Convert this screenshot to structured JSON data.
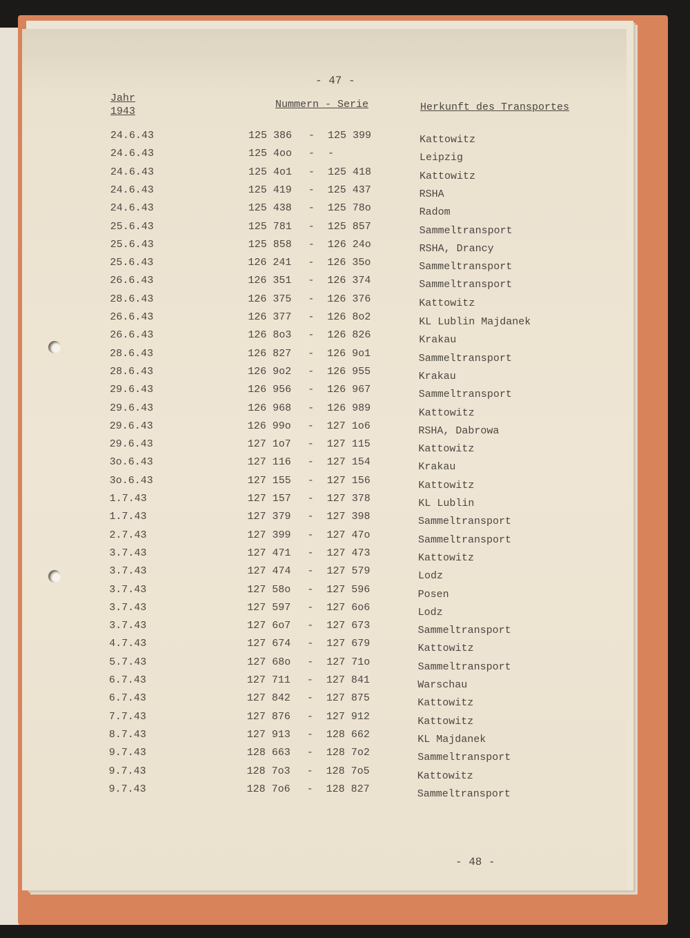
{
  "page_number_top": "- 47 -",
  "page_number_bottom": "- 48 -",
  "headers": {
    "year_label": "Jahr",
    "year": "1943",
    "numbers": "Nummern - Serie",
    "origin": "Herkunft des Transportes"
  },
  "rows": [
    {
      "date": "24.6.43",
      "from": "125 386",
      "dash": "-",
      "to": "125 399",
      "origin": "Kattowitz"
    },
    {
      "date": "24.6.43",
      "from": "125 4oo",
      "dash": "-",
      "to": "-",
      "origin": "Leipzig"
    },
    {
      "date": "24.6.43",
      "from": "125 4o1",
      "dash": "-",
      "to": "125 418",
      "origin": "Kattowitz"
    },
    {
      "date": "24.6.43",
      "from": "125 419",
      "dash": "-",
      "to": "125 437",
      "origin": "RSHA"
    },
    {
      "date": "24.6.43",
      "from": "125 438",
      "dash": "-",
      "to": "125 78o",
      "origin": "Radom"
    },
    {
      "date": "25.6.43",
      "from": "125 781",
      "dash": "-",
      "to": "125 857",
      "origin": "Sammeltransport"
    },
    {
      "date": "25.6.43",
      "from": "125 858",
      "dash": "-",
      "to": "126 24o",
      "origin": "RSHA, Drancy"
    },
    {
      "date": "25.6.43",
      "from": "126 241",
      "dash": "-",
      "to": "126 35o",
      "origin": "Sammeltransport"
    },
    {
      "date": "26.6.43",
      "from": "126 351",
      "dash": "-",
      "to": "126 374",
      "origin": "Sammeltransport"
    },
    {
      "date": "28.6.43",
      "from": "126 375",
      "dash": "-",
      "to": "126 376",
      "origin": "Kattowitz"
    },
    {
      "date": "26.6.43",
      "from": "126 377",
      "dash": "-",
      "to": "126 8o2",
      "origin": "KL Lublin Majdanek"
    },
    {
      "date": "26.6.43",
      "from": "126 8o3",
      "dash": "-",
      "to": "126 826",
      "origin": "Krakau"
    },
    {
      "date": "28.6.43",
      "from": "126 827",
      "dash": "-",
      "to": "126 9o1",
      "origin": "Sammeltransport"
    },
    {
      "date": "28.6.43",
      "from": "126 9o2",
      "dash": "-",
      "to": "126 955",
      "origin": "Krakau"
    },
    {
      "date": "29.6.43",
      "from": "126 956",
      "dash": "-",
      "to": "126 967",
      "origin": "Sammeltransport"
    },
    {
      "date": "29.6.43",
      "from": "126 968",
      "dash": "-",
      "to": "126 989",
      "origin": "Kattowitz"
    },
    {
      "date": "29.6.43",
      "from": "126 99o",
      "dash": "-",
      "to": "127 1o6",
      "origin": "RSHA, Dabrowa"
    },
    {
      "date": "29.6.43",
      "from": "127 1o7",
      "dash": "-",
      "to": "127 115",
      "origin": "Kattowitz"
    },
    {
      "date": "3o.6.43",
      "from": "127 116",
      "dash": "-",
      "to": "127 154",
      "origin": "Krakau"
    },
    {
      "date": "3o.6.43",
      "from": "127 155",
      "dash": "-",
      "to": "127 156",
      "origin": "Kattowitz"
    },
    {
      "date": "1.7.43",
      "from": "127 157",
      "dash": "-",
      "to": "127 378",
      "origin": "KL Lublin"
    },
    {
      "date": "1.7.43",
      "from": "127 379",
      "dash": "-",
      "to": "127 398",
      "origin": "Sammeltransport"
    },
    {
      "date": "2.7.43",
      "from": "127 399",
      "dash": "-",
      "to": "127 47o",
      "origin": "Sammeltransport"
    },
    {
      "date": "3.7.43",
      "from": "127 471",
      "dash": "-",
      "to": "127 473",
      "origin": "Kattowitz"
    },
    {
      "date": "3.7.43",
      "from": "127 474",
      "dash": "-",
      "to": "127 579",
      "origin": "Lodz"
    },
    {
      "date": "3.7.43",
      "from": "127 58o",
      "dash": "-",
      "to": "127 596",
      "origin": "Posen"
    },
    {
      "date": "3.7.43",
      "from": "127 597",
      "dash": "-",
      "to": "127 6o6",
      "origin": "Lodz"
    },
    {
      "date": "3.7.43",
      "from": "127 6o7",
      "dash": "-",
      "to": "127 673",
      "origin": "Sammeltransport"
    },
    {
      "date": "4.7.43",
      "from": "127 674",
      "dash": "-",
      "to": "127 679",
      "origin": "Kattowitz"
    },
    {
      "date": "5.7.43",
      "from": "127 68o",
      "dash": "-",
      "to": "127 71o",
      "origin": "Sammeltransport"
    },
    {
      "date": "6.7.43",
      "from": "127 711",
      "dash": "-",
      "to": "127 841",
      "origin": "Warschau"
    },
    {
      "date": "6.7.43",
      "from": "127 842",
      "dash": "-",
      "to": "127 875",
      "origin": "Kattowitz"
    },
    {
      "date": "7.7.43",
      "from": "127 876",
      "dash": "-",
      "to": "127 912",
      "origin": "Kattowitz"
    },
    {
      "date": "8.7.43",
      "from": "127 913",
      "dash": "-",
      "to": "128 662",
      "origin": "KL Majdanek"
    },
    {
      "date": "9.7.43",
      "from": "128 663",
      "dash": "-",
      "to": "128 7o2",
      "origin": "Sammeltransport"
    },
    {
      "date": "9.7.43",
      "from": "128 7o3",
      "dash": "-",
      "to": "128 7o5",
      "origin": "Kattowitz"
    },
    {
      "date": "9.7.43",
      "from": "128 7o6",
      "dash": "-",
      "to": "128 827",
      "origin": "Sammeltransport"
    }
  ]
}
